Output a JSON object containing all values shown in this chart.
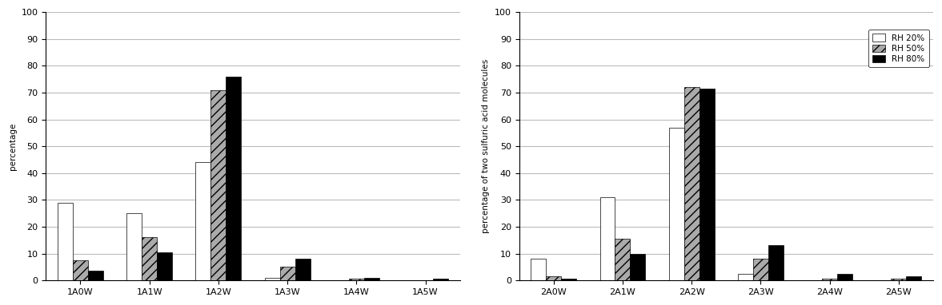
{
  "left": {
    "categories": [
      "1A0W",
      "1A1W",
      "1A2W",
      "1A3W",
      "1A4W",
      "1A5W"
    ],
    "rh20": [
      29,
      25,
      44,
      1,
      0,
      0
    ],
    "rh50": [
      7.5,
      16,
      71,
      5,
      0.5,
      0
    ],
    "rh80": [
      3.5,
      10.5,
      76,
      8,
      1,
      0.5
    ],
    "ylabel": "percentage"
  },
  "right": {
    "categories": [
      "2A0W",
      "2A1W",
      "2A2W",
      "2A3W",
      "2A4W",
      "2A5W"
    ],
    "rh20": [
      8,
      31,
      57,
      2.5,
      0,
      0
    ],
    "rh50": [
      1.5,
      15.5,
      72,
      8,
      0.5,
      0.5
    ],
    "rh80": [
      0.5,
      10,
      71.5,
      13,
      2.5,
      1.5
    ],
    "ylabel": "percentage of two sulfuric acid molecules"
  },
  "legend_labels": [
    "RH 20%",
    "RH 50%",
    "RH 80%"
  ],
  "colors": [
    "white",
    "#aaaaaa",
    "black"
  ],
  "hatch_patterns": [
    "",
    "///",
    ""
  ],
  "ylim": [
    0,
    100
  ],
  "yticks": [
    0,
    10,
    20,
    30,
    40,
    50,
    60,
    70,
    80,
    90,
    100
  ],
  "bar_width": 0.22,
  "edgecolor": "black",
  "bg_color": "white",
  "grid_color": "#bbbbbb"
}
